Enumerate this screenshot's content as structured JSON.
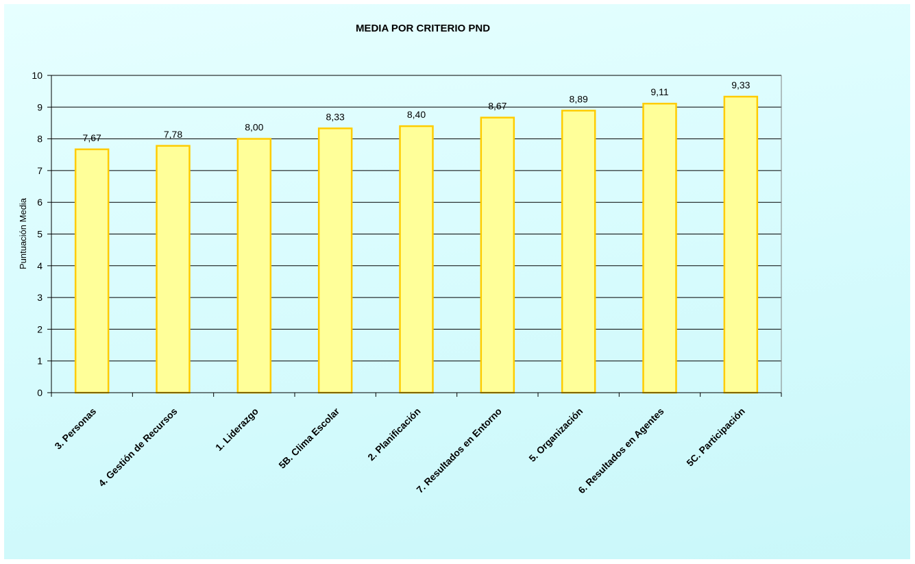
{
  "chart_data": {
    "type": "bar",
    "title": "MEDIA POR CRITERIO PND",
    "xlabel": "",
    "ylabel": "Puntuación Media",
    "ylim": [
      0,
      10
    ],
    "yticks": [
      0,
      1,
      2,
      3,
      4,
      5,
      6,
      7,
      8,
      9,
      10
    ],
    "grid": true,
    "categories": [
      "3. Personas",
      "4. Gestión de Recursos",
      "1. Liderazgo",
      "5B. Clima Escolar",
      "2. Planificación",
      "7. Resultados en Entorno",
      "5. Organización",
      "6. Resultados en Agentes",
      "5C. Participación"
    ],
    "values": [
      7.67,
      7.78,
      8.0,
      8.33,
      8.4,
      8.67,
      8.89,
      9.11,
      9.33
    ],
    "data_labels": [
      "7,67",
      "7,78",
      "8,00",
      "8,33",
      "8,40",
      "8,67",
      "8,89",
      "9,11",
      "9,33"
    ],
    "colors": {
      "bar_fill": "#ffff99",
      "bar_stroke": "#ffcc00",
      "background": "#dcfcfd",
      "grid": "#000000"
    }
  }
}
